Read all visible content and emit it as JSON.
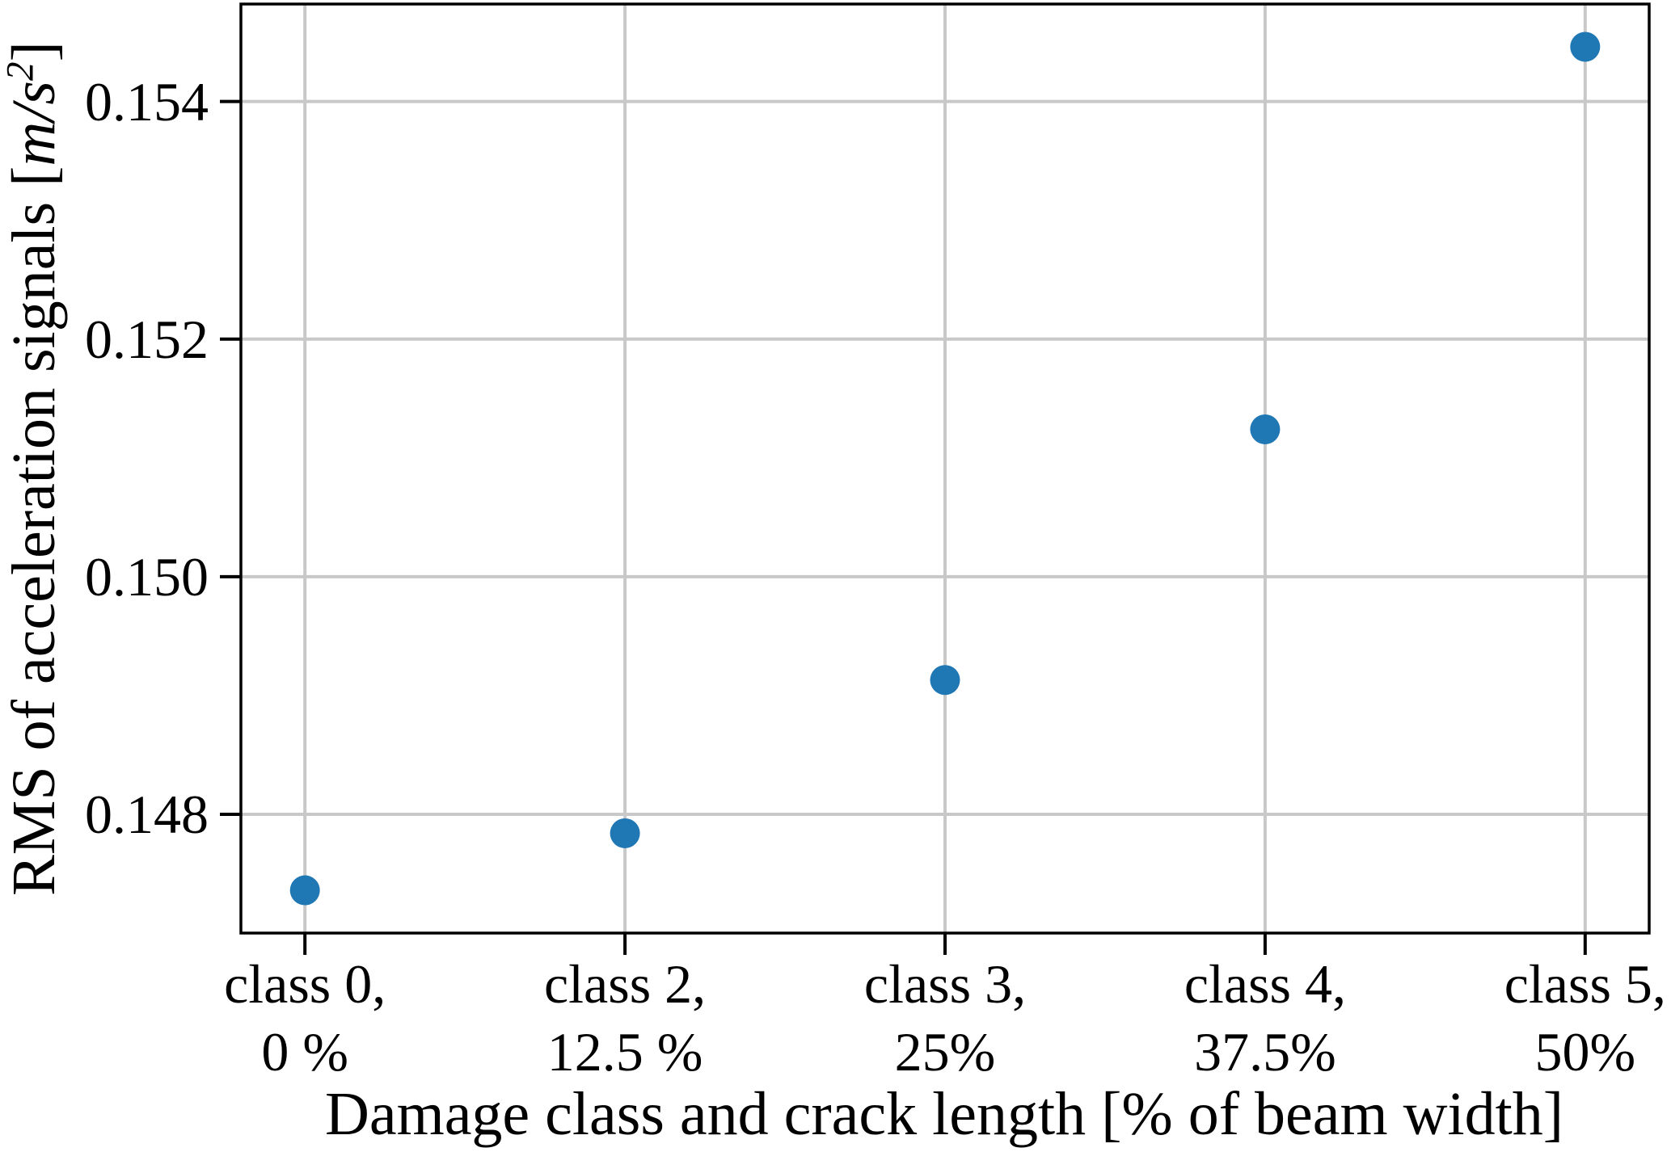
{
  "chart_data": {
    "type": "scatter",
    "title": "",
    "xlabel": "Damage class and crack length [% of beam width]",
    "ylabel_parts": {
      "prefix": "RMS of acceleration signals [",
      "math": "m/s",
      "sup": "2",
      "suffix": "]"
    },
    "categories": [
      "class 0, 0 %",
      "class 2, 12.5 %",
      "class 3, 25%",
      "class 4, 37.5%",
      "class 5, 50%"
    ],
    "x_tick_labels_line1": [
      "class 0,",
      "class 2,",
      "class 3,",
      "class 4,",
      "class 5,"
    ],
    "x_tick_labels_line2": [
      "0 %",
      "12.5 %",
      "25%",
      "37.5%",
      "50%"
    ],
    "series": [
      {
        "name": "RMS of acceleration signals",
        "values": [
          0.14736,
          0.14784,
          0.14913,
          0.15124,
          0.15446
        ]
      }
    ],
    "yticks": [
      0.148,
      0.15,
      0.152,
      0.154
    ],
    "ytick_labels": [
      "0.148",
      "0.150",
      "0.152",
      "0.154"
    ],
    "ylim": [
      0.147,
      0.15482
    ],
    "grid": true,
    "legend": "none",
    "marker_color": "#1f77b4",
    "grid_color": "#c8c8c8",
    "axis_color": "#000000",
    "background_color": "#ffffff"
  }
}
